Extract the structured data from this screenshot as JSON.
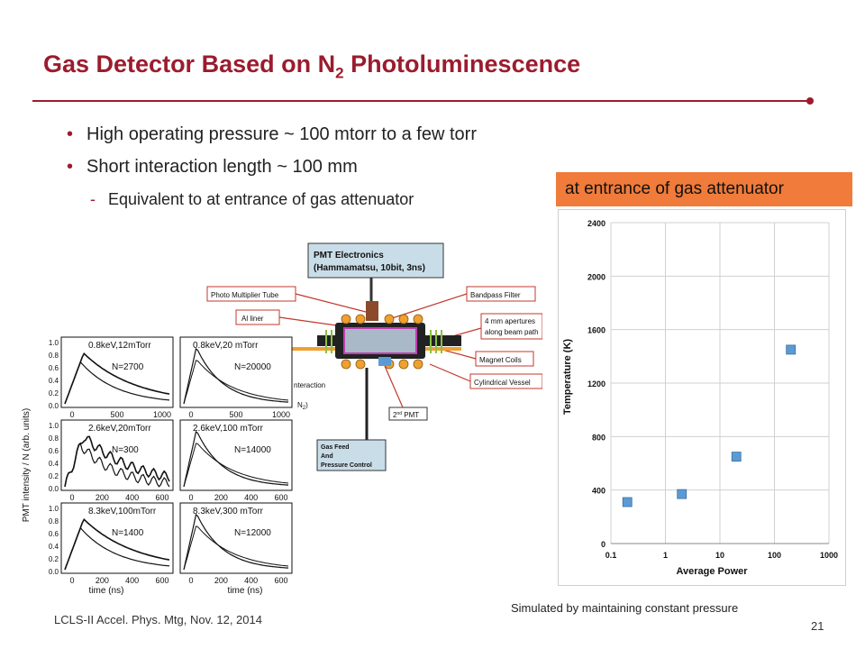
{
  "title": {
    "main": "Gas Detector Based on N",
    "subscript": "2",
    "rest": " Photoluminescence"
  },
  "bullets": [
    "High operating pressure ~ 100 mtorr to a few torr",
    "Short interaction length ~ 100 mm"
  ],
  "sub_bullet": "Equivalent to at entrance of gas attenuator",
  "callout": "at entrance of gas attenuator",
  "caption": "Simulated by maintaining constant pressure",
  "footer": "LCLS-II Accel. Phys. Mtg, Nov. 12, 2014",
  "page_number": "21",
  "colors": {
    "accent": "#9b1c2e",
    "callout": "#f07b3a",
    "marker": "#5b9bd5"
  },
  "schematic": {
    "labels": {
      "pmt_electronics": "PMT Electronics",
      "pmt_electronics_detail": "(Hammamatsu, 10bit, 3ns)",
      "photo_multiplier_tube": "Photo Multiplier Tube",
      "al_liner": "Al liner",
      "bandpass_filter": "Bandpass Filter",
      "apertures_1": "4 mm apertures",
      "apertures_2": "along beam path",
      "magnet_coils": "Magnet Coils",
      "cylindrical_vessel": "Cylindrical Vessel",
      "interaction": "nteraction",
      "n2": "N",
      "second_pmt": "2",
      "second_pmt_sup": "nd",
      "second_pmt_rest": " PMT",
      "gas_feed_1": "Gas Feed",
      "gas_feed_2": "And",
      "gas_feed_3": "Pressure Control"
    }
  },
  "pmt_panels": {
    "ylabel": "PMT intensity / N (arb. units)",
    "xlabel": "time (ns)",
    "ytick_labels": [
      "1.0",
      "0.8",
      "0.6",
      "0.4",
      "0.2",
      "0.0"
    ],
    "xtick_labels_row1": [
      "0",
      "500",
      "1000"
    ],
    "xtick_labels_row2": [
      "0",
      "200",
      "400",
      "600"
    ],
    "xtick_labels_row3": [
      "0",
      "200",
      "400",
      "600"
    ],
    "panels": [
      {
        "line1": "0.8keV,12mTorr",
        "line2": "N=2700"
      },
      {
        "line1": "0.8keV,20 mTorr",
        "line2": "N=20000"
      },
      {
        "line1": "2.6keV,20mTorr",
        "line2": "N=300"
      },
      {
        "line1": "2.6keV,100 mTorr",
        "line2": "N=14000"
      },
      {
        "line1": "8.3keV,100mTorr",
        "line2": "N=1400"
      },
      {
        "line1": "8.3keV,300 mTorr",
        "line2": "N=12000"
      }
    ]
  },
  "chart_data": {
    "type": "scatter",
    "title": "",
    "xlabel": "Average Power",
    "ylabel": "Temperature (K)",
    "xscale": "log",
    "xlim": [
      0.1,
      1000
    ],
    "ylim": [
      0,
      2400
    ],
    "xticks": [
      0.1,
      1,
      10,
      100,
      1000
    ],
    "xtick_labels": [
      "0.1",
      "1",
      "10",
      "100",
      "1000"
    ],
    "yticks": [
      0,
      400,
      800,
      1200,
      1600,
      2000,
      2400
    ],
    "ytick_labels": [
      "0",
      "400",
      "800",
      "1200",
      "1600",
      "2000",
      "2400"
    ],
    "grid": true,
    "x": [
      0.2,
      2,
      20,
      200
    ],
    "y": [
      310,
      370,
      650,
      1450
    ],
    "marker_color": "#5b9bd5"
  }
}
